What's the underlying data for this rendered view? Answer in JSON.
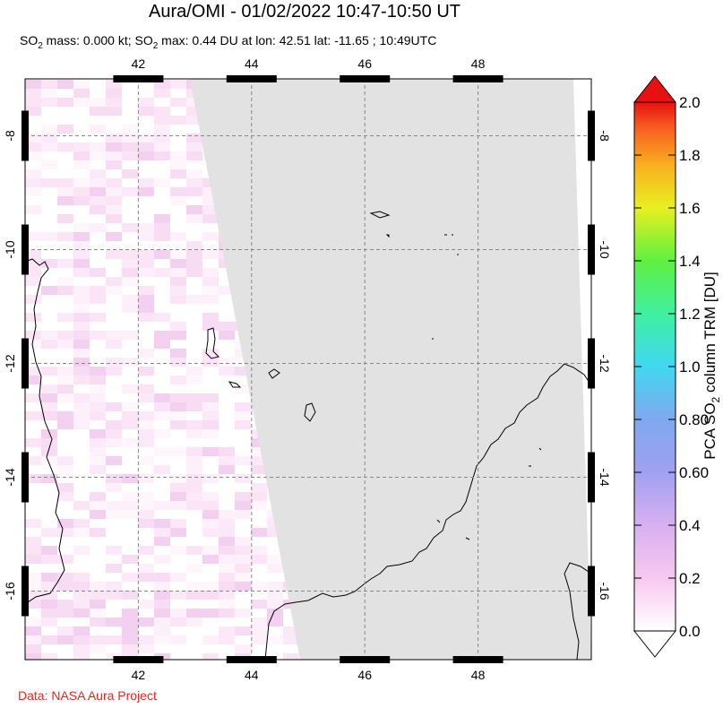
{
  "header": {
    "title": "Aura/OMI - 01/02/2022 10:47-10:50 UT",
    "so2_mass_label": "SO",
    "so2_mass_sub": "2",
    "so2_mass_value": " mass: 0.000 kt; SO",
    "so2_max_sub": "2",
    "so2_max_value": " max: 0.44 DU at lon: 42.51 lat: -11.65 ; 10:49UTC"
  },
  "map": {
    "lon_ticks": [
      "42",
      "44",
      "46",
      "48"
    ],
    "lat_ticks": [
      "-8",
      "-10",
      "-12",
      "-14",
      "-16"
    ],
    "no_data_color": "#e2e2e2",
    "coastline_color": "#000000",
    "grid_style": "dashed"
  },
  "colorbar": {
    "label_pre": "PCA SO",
    "label_sub": "2",
    "label_post": " column TRM [DU]",
    "ticks": [
      "2.0",
      "1.8",
      "1.6",
      "1.4",
      "1.2",
      "1.0",
      "0.80",
      "0.60",
      "0.4",
      "0.2",
      "0.0"
    ],
    "colors": [
      "#ffffff",
      "#f8c8f0",
      "#b8a0f0",
      "#8080f0",
      "#40b8f0",
      "#40e8e0",
      "#40f080",
      "#80f040",
      "#e8f020",
      "#f8c020",
      "#f87020",
      "#e81010"
    ]
  },
  "footer": {
    "credit": "Data: NASA Aura Project"
  }
}
